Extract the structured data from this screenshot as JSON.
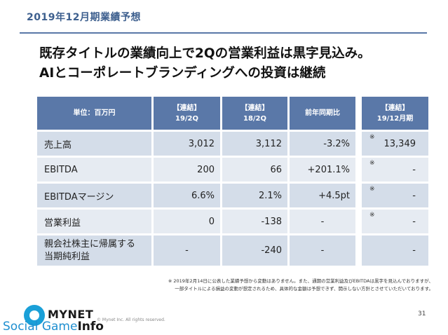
{
  "section_title": "2019年12月期業績予想",
  "headline": {
    "line1": "既存タイトルの業績向上で2Qの営業利益は黒字見込み。",
    "line2": "AIとコーポレートブランディングへの投資は継続"
  },
  "table": {
    "headers": {
      "unit": "単位：百万円",
      "col1_tag": "【連結】",
      "col1_period": "19/2Q",
      "col2_tag": "【連結】",
      "col2_period": "18/2Q",
      "col3": "前年同期比",
      "side_tag": "【連結】",
      "side_period": "19/12月期"
    },
    "rows": [
      {
        "label": "売上高",
        "v19": "3,012",
        "v18": "3,112",
        "yoy": "-3.2%",
        "note": "※",
        "full_year": "13,349"
      },
      {
        "label": "EBITDA",
        "v19": "200",
        "v18": "66",
        "yoy": "+201.1%",
        "note": "※",
        "full_year": "-"
      },
      {
        "label": "EBITDAマージン",
        "v19": "6.6%",
        "v18": "2.1%",
        "yoy": "+4.5pt",
        "note": "※",
        "full_year": "-"
      },
      {
        "label": "営業利益",
        "v19": "0",
        "v18": "-138",
        "yoy": "-",
        "note": "※",
        "full_year": "-"
      },
      {
        "label_line1": "親会社株主に帰属する",
        "label_line2": "当期純利益",
        "v19": "-",
        "v18": "-240",
        "yoy": "-",
        "full_year": "-"
      }
    ]
  },
  "footnote": {
    "line1": "※ 2019年2月14日に公表した業績予想から変動はありません。また、通期の営業利益及びEBITDAは黒字を見込んでおりますが、",
    "line2": "一部タイトルによる損益の変動が想定されるため、具体的な金額は予想できず、開示しない方針とさせていただいております。"
  },
  "brand": {
    "logo_text": "MYNET",
    "sgi_part1": "Social",
    "sgi_part2": "Game",
    "sgi_part3": "Info",
    "logo_color": "#1aa0d8"
  },
  "copyright": "© Mynet Inc. All rights reserved.",
  "page_number": "31",
  "colors": {
    "header_bg": "#5a78a8",
    "row_dark": "#d4dde9",
    "row_light": "#e6ebf2",
    "title_color": "#3d5f8e"
  }
}
